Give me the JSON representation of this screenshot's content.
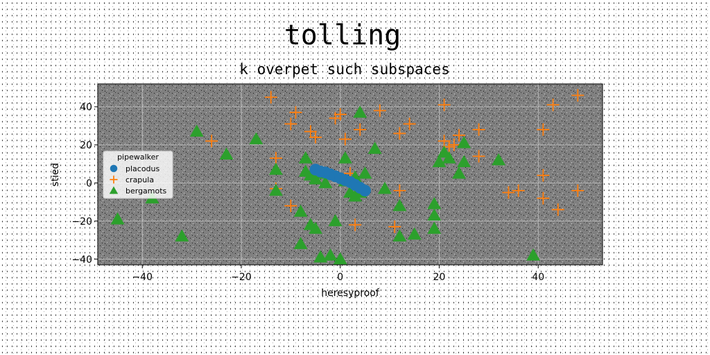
{
  "chart_data": {
    "type": "scatter",
    "title": "tolling",
    "subtitle": "k overpet such subspaces",
    "xlabel": "heresyproof",
    "ylabel": "stied",
    "xlim": [
      -49,
      53
    ],
    "ylim": [
      -43,
      52
    ],
    "xticks": [
      -40,
      -20,
      0,
      20,
      40
    ],
    "yticks": [
      -40,
      -20,
      0,
      20,
      40
    ],
    "grid": true,
    "legend": {
      "title": "pipewalker",
      "position": "center-left"
    },
    "colors": {
      "placodus": "#1f77b4",
      "crapula": "#ff7f0e",
      "bergamots": "#2ca02c",
      "plot_bg": "#808080"
    },
    "series": [
      {
        "name": "placodus",
        "marker": "circle",
        "x": [
          -5,
          -4,
          -3,
          -2,
          -1,
          0,
          1,
          2,
          3,
          4,
          5
        ],
        "y": [
          7,
          6,
          5.5,
          4.5,
          3.5,
          2.5,
          1.5,
          0.5,
          -1,
          -2.5,
          -4
        ]
      },
      {
        "name": "crapula",
        "marker": "plus",
        "x": [
          -14,
          -26,
          -9,
          -10,
          -6,
          -5,
          -1,
          0,
          1,
          4,
          8,
          12,
          14,
          21,
          21,
          23,
          24,
          28,
          28,
          22,
          41,
          43,
          48,
          41,
          34,
          36,
          41,
          44,
          48,
          -13,
          -13,
          -10,
          2,
          3,
          11,
          12
        ],
        "y": [
          45,
          22,
          37,
          31,
          27,
          24,
          34,
          36,
          23,
          28,
          38,
          26,
          31,
          41,
          22,
          20,
          25,
          28,
          14,
          19,
          28,
          41,
          46,
          4,
          -5,
          -4,
          -8,
          -14,
          -4,
          13,
          -3,
          -12,
          5,
          -22,
          -23,
          -4
        ]
      },
      {
        "name": "bergamots",
        "marker": "triangle",
        "x": [
          -29,
          -23,
          -17,
          -45,
          -38,
          -32,
          -13,
          -13,
          -7,
          -7,
          -6,
          -5,
          -4,
          -3,
          1,
          1,
          2,
          3,
          4,
          4,
          5,
          7,
          9,
          12,
          12,
          15,
          19,
          19,
          19,
          20,
          21,
          22,
          24,
          25,
          25,
          32,
          39,
          -8,
          -6,
          -5,
          -8,
          -4,
          -2,
          -1,
          0,
          3
        ],
        "y": [
          27,
          15,
          23,
          -19,
          -8,
          -28,
          7,
          -4,
          13,
          6,
          4,
          2,
          5,
          0,
          13,
          1,
          -5,
          -7,
          -5,
          37,
          5,
          18,
          -3,
          -12,
          -28,
          -27,
          -11,
          -17,
          -24,
          11,
          16,
          13,
          5,
          11,
          21,
          12,
          -38,
          -15,
          -22,
          -24,
          -32,
          -39,
          -38,
          -20,
          -40,
          3
        ]
      }
    ]
  }
}
